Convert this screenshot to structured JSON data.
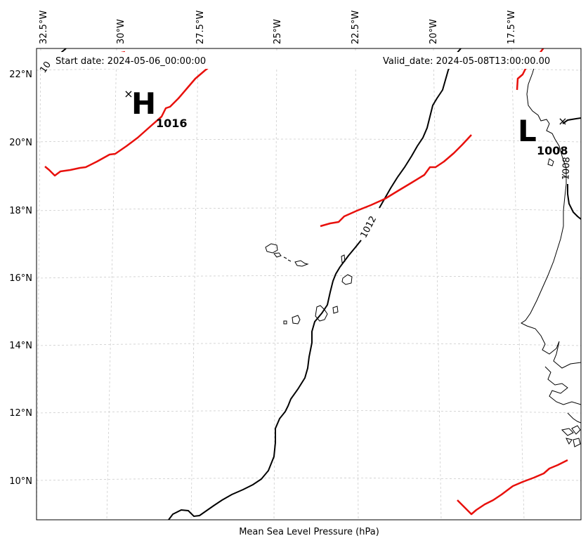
{
  "header": {
    "start_date": "Start date: 2024-05-06_00:00:00",
    "valid_date": "Valid_date: 2024-05-08T13:00:00.00"
  },
  "map": {
    "title": "Mean Sea Level Pressure (hPa)",
    "lon_labels": [
      "32.5°W",
      "30°W",
      "27.5°W",
      "25°W",
      "22.5°W",
      "20°W",
      "17.5°W"
    ],
    "lat_labels": [
      "22°N",
      "20°N",
      "18°N",
      "16°N",
      "14°N",
      "12°N",
      "10°N"
    ],
    "gridlines": true,
    "colors": {
      "isobar": "#000000",
      "front": "#e8100c",
      "grid": "#cccccc",
      "coast": "#000000"
    }
  },
  "pressure_centers": [
    {
      "type": "H",
      "value": "1016",
      "marker": "×"
    },
    {
      "type": "L",
      "value": "1008",
      "marker": "×"
    }
  ],
  "contour_labels": [
    "1012",
    "1008",
    "10"
  ]
}
